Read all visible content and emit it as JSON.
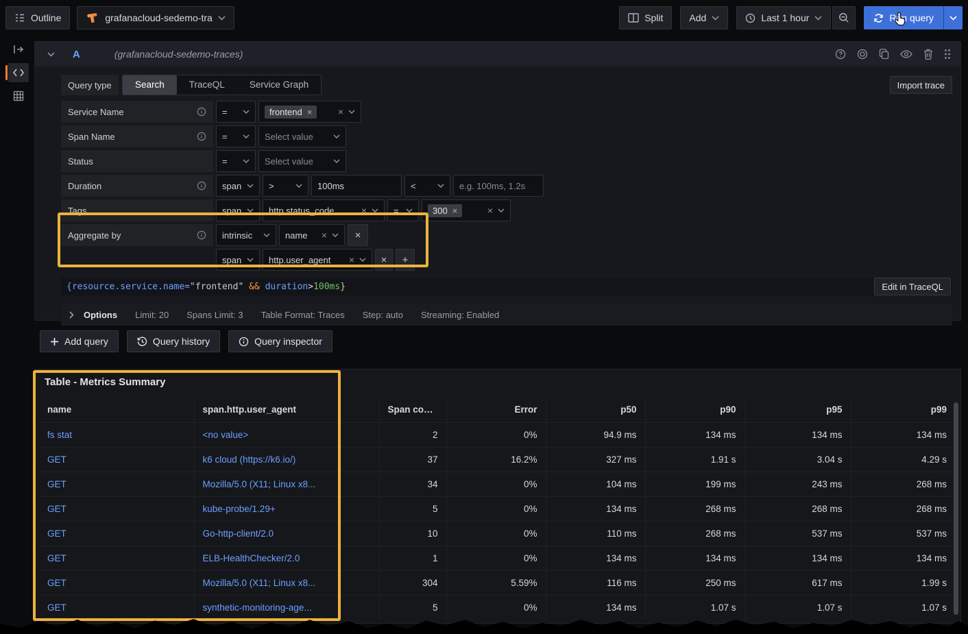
{
  "topbar": {
    "outline_label": "Outline",
    "datasource": "grafanacloud-sedemo-tra",
    "split_label": "Split",
    "add_label": "Add",
    "time_label": "Last 1 hour",
    "run_label": "Run query"
  },
  "query": {
    "ref_id": "A",
    "datasource_hint": "(grafanacloud-sedemo-traces)",
    "query_type_label": "Query type",
    "tabs": [
      {
        "label": "Search",
        "active": true
      },
      {
        "label": "TraceQL",
        "active": false
      },
      {
        "label": "Service Graph",
        "active": false
      }
    ],
    "import_trace_label": "Import trace",
    "rows": {
      "service_name": {
        "label": "Service Name",
        "op": "=",
        "chip": "frontend"
      },
      "span_name": {
        "label": "Span Name",
        "op": "=",
        "placeholder": "Select value"
      },
      "status": {
        "label": "Status",
        "op": "=",
        "placeholder": "Select value"
      },
      "duration": {
        "label": "Duration",
        "scope": "span",
        "op_gt": ">",
        "value_gt": "100ms",
        "op_lt": "<",
        "placeholder_lt": "e.g. 100ms, 1.2s"
      },
      "tags": {
        "label": "Tags",
        "scope": "span",
        "key": "http.status_code",
        "op": "=",
        "chip": "300"
      },
      "aggregate": {
        "label": "Aggregate by",
        "rows": [
          {
            "scope": "intrinsic",
            "key": "name"
          },
          {
            "scope": "span",
            "key": "http.user_agent"
          }
        ]
      }
    },
    "preview_tokens": [
      {
        "text": "{resource.service.name=",
        "cls": "tok-blue"
      },
      {
        "text": "\"frontend\"",
        "cls": "tok-str"
      },
      {
        "text": " && ",
        "cls": "tok-orange"
      },
      {
        "text": "duration",
        "cls": "tok-blue"
      },
      {
        "text": ">",
        "cls": "tok-plain"
      },
      {
        "text": "100ms",
        "cls": "tok-green"
      },
      {
        "text": "}",
        "cls": "tok-yellow"
      }
    ],
    "edit_traceql_label": "Edit in TraceQL",
    "options": {
      "label": "Options",
      "items": [
        "Limit: 20",
        "Spans Limit: 3",
        "Table Format: Traces",
        "Step: auto",
        "Streaming: Enabled"
      ]
    },
    "actions": {
      "add_query": "Add query",
      "history": "Query history",
      "inspector": "Query inspector"
    }
  },
  "table": {
    "title": "Table - Metrics Summary",
    "columns": [
      "name",
      "span.http.user_agent",
      "Span count",
      "Error",
      "p50",
      "p90",
      "p95",
      "p99"
    ],
    "rows": [
      [
        "fs stat",
        "<no value>",
        "2",
        "0%",
        "94.9 ms",
        "134 ms",
        "134 ms",
        "134 ms"
      ],
      [
        "GET",
        "k6 cloud (https://k6.io/)",
        "37",
        "16.2%",
        "327 ms",
        "1.91 s",
        "3.04 s",
        "4.29 s"
      ],
      [
        "GET",
        "Mozilla/5.0 (X11; Linux x8...",
        "34",
        "0%",
        "104 ms",
        "199 ms",
        "243 ms",
        "268 ms"
      ],
      [
        "GET",
        "kube-probe/1.29+",
        "5",
        "0%",
        "134 ms",
        "268 ms",
        "268 ms",
        "268 ms"
      ],
      [
        "GET",
        "Go-http-client/2.0",
        "10",
        "0%",
        "110 ms",
        "268 ms",
        "537 ms",
        "537 ms"
      ],
      [
        "GET",
        "ELB-HealthChecker/2.0",
        "1",
        "0%",
        "134 ms",
        "134 ms",
        "134 ms",
        "134 ms"
      ],
      [
        "GET",
        "Mozilla/5.0 (X11; Linux x8...",
        "304",
        "5.59%",
        "116 ms",
        "250 ms",
        "617 ms",
        "1.99 s"
      ],
      [
        "GET",
        "synthetic-monitoring-age...",
        "5",
        "0%",
        "134 ms",
        "1.07 s",
        "1.07 s",
        "1.07 s"
      ]
    ]
  },
  "glyphs": {
    "close": "×",
    "plus": "+",
    "options_caret": "›"
  },
  "colors": {
    "highlight": "#EDB23D",
    "link": "#6E9FFF",
    "accent_blue": "#3D71D9",
    "rail_active": "#FF7D33"
  }
}
